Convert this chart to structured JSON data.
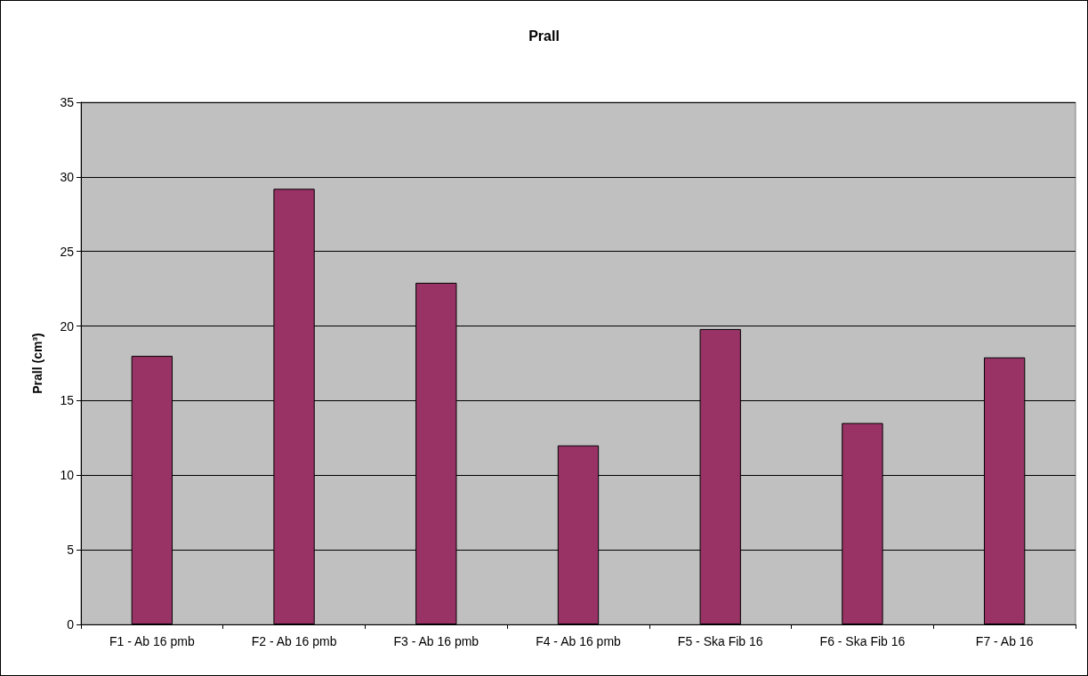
{
  "chart_data": {
    "type": "bar",
    "title": "Prall",
    "ylabel": "Prall (cm³)",
    "categories": [
      "F1 - Ab 16 pmb",
      "F2 - Ab 16 pmb",
      "F3 - Ab 16 pmb",
      "F4 - Ab 16 pmb",
      "F5 - Ska Fib 16",
      "F6 - Ska Fib 16",
      "F7 - Ab 16"
    ],
    "values": [
      18.0,
      29.2,
      22.9,
      12.0,
      19.8,
      13.5,
      17.9
    ],
    "color": "#993366",
    "ylim": [
      0,
      35
    ],
    "yticks": [
      0,
      5,
      10,
      15,
      20,
      25,
      30,
      35
    ],
    "grid": "y"
  }
}
